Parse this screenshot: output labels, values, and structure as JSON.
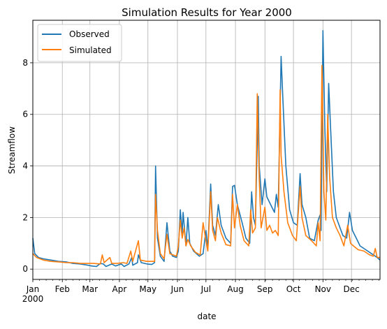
{
  "chart_data": {
    "type": "line",
    "title": "Simulation Results for Year 2000",
    "xlabel": "date",
    "ylabel": "Streamflow",
    "x_range": [
      "2000-01-01",
      "2000-12-31"
    ],
    "ylim": [
      -0.4,
      9.65
    ],
    "grid": true,
    "legend_position": "top-left",
    "month_ticks": [
      "Jan",
      "Feb",
      "Mar",
      "Apr",
      "May",
      "Jun",
      "Jul",
      "Aug",
      "Sep",
      "Oct",
      "Nov",
      "Dec"
    ],
    "year_label": "2000",
    "y_ticks": [
      0,
      2,
      4,
      6,
      8
    ],
    "series": [
      {
        "name": "Observed",
        "color": "#1f77b4",
        "points": [
          [
            "2000-01-01",
            1.2
          ],
          [
            "2000-01-03",
            0.6
          ],
          [
            "2000-01-07",
            0.45
          ],
          [
            "2000-01-12",
            0.4
          ],
          [
            "2000-01-20",
            0.35
          ],
          [
            "2000-01-28",
            0.3
          ],
          [
            "2000-02-05",
            0.28
          ],
          [
            "2000-02-12",
            0.22
          ],
          [
            "2000-02-20",
            0.2
          ],
          [
            "2000-02-28",
            0.15
          ],
          [
            "2000-03-03",
            0.12
          ],
          [
            "2000-03-08",
            0.1
          ],
          [
            "2000-03-12",
            0.22
          ],
          [
            "2000-03-15",
            0.2
          ],
          [
            "2000-03-18",
            0.1
          ],
          [
            "2000-03-24",
            0.2
          ],
          [
            "2000-03-28",
            0.12
          ],
          [
            "2000-04-03",
            0.2
          ],
          [
            "2000-04-06",
            0.1
          ],
          [
            "2000-04-11",
            0.2
          ],
          [
            "2000-04-14",
            0.45
          ],
          [
            "2000-04-15",
            0.15
          ],
          [
            "2000-04-20",
            0.25
          ],
          [
            "2000-04-21",
            0.55
          ],
          [
            "2000-04-24",
            0.25
          ],
          [
            "2000-04-30",
            0.2
          ],
          [
            "2000-05-05",
            0.18
          ],
          [
            "2000-05-08",
            0.25
          ],
          [
            "2000-05-09",
            4.0
          ],
          [
            "2000-05-11",
            1.2
          ],
          [
            "2000-05-14",
            0.5
          ],
          [
            "2000-05-18",
            0.3
          ],
          [
            "2000-05-21",
            1.8
          ],
          [
            "2000-05-24",
            0.7
          ],
          [
            "2000-05-27",
            0.5
          ],
          [
            "2000-05-31",
            0.45
          ],
          [
            "2000-06-02",
            0.7
          ],
          [
            "2000-06-04",
            2.3
          ],
          [
            "2000-06-06",
            1.4
          ],
          [
            "2000-06-07",
            2.2
          ],
          [
            "2000-06-10",
            0.9
          ],
          [
            "2000-06-12",
            2.0
          ],
          [
            "2000-06-14",
            1.0
          ],
          [
            "2000-06-18",
            0.7
          ],
          [
            "2000-06-24",
            0.5
          ],
          [
            "2000-06-28",
            0.6
          ],
          [
            "2000-07-01",
            1.5
          ],
          [
            "2000-07-03",
            0.8
          ],
          [
            "2000-07-06",
            3.3
          ],
          [
            "2000-07-08",
            1.7
          ],
          [
            "2000-07-11",
            1.3
          ],
          [
            "2000-07-14",
            2.5
          ],
          [
            "2000-07-17",
            1.7
          ],
          [
            "2000-07-22",
            1.2
          ],
          [
            "2000-07-27",
            1.0
          ],
          [
            "2000-07-29",
            3.2
          ],
          [
            "2000-07-31",
            3.25
          ],
          [
            "2000-08-03",
            2.5
          ],
          [
            "2000-08-08",
            1.8
          ],
          [
            "2000-08-12",
            1.2
          ],
          [
            "2000-08-16",
            1.0
          ],
          [
            "2000-08-18",
            3.0
          ],
          [
            "2000-08-20",
            2.0
          ],
          [
            "2000-08-22",
            1.7
          ],
          [
            "2000-08-25",
            6.7
          ],
          [
            "2000-08-26",
            4.0
          ],
          [
            "2000-08-29",
            2.5
          ],
          [
            "2000-09-01",
            3.5
          ],
          [
            "2000-09-03",
            2.8
          ],
          [
            "2000-09-07",
            2.5
          ],
          [
            "2000-09-11",
            2.2
          ],
          [
            "2000-09-13",
            2.9
          ],
          [
            "2000-09-15",
            2.4
          ],
          [
            "2000-09-18",
            8.25
          ],
          [
            "2000-09-20",
            6.5
          ],
          [
            "2000-09-23",
            4.0
          ],
          [
            "2000-09-27",
            2.3
          ],
          [
            "2000-10-01",
            1.8
          ],
          [
            "2000-10-05",
            1.7
          ],
          [
            "2000-10-08",
            3.7
          ],
          [
            "2000-10-10",
            2.5
          ],
          [
            "2000-10-14",
            2.0
          ],
          [
            "2000-10-18",
            1.2
          ],
          [
            "2000-10-23",
            1.1
          ],
          [
            "2000-10-27",
            1.9
          ],
          [
            "2000-10-29",
            2.1
          ],
          [
            "2000-10-30",
            1.5
          ],
          [
            "2000-11-01",
            9.25
          ],
          [
            "2000-11-03",
            5.5
          ],
          [
            "2000-11-05",
            3.0
          ],
          [
            "2000-11-07",
            7.2
          ],
          [
            "2000-11-09",
            5.5
          ],
          [
            "2000-11-12",
            3.0
          ],
          [
            "2000-11-15",
            2.0
          ],
          [
            "2000-11-19",
            1.6
          ],
          [
            "2000-11-22",
            1.3
          ],
          [
            "2000-11-26",
            1.2
          ],
          [
            "2000-11-29",
            2.2
          ],
          [
            "2000-12-02",
            1.5
          ],
          [
            "2000-12-06",
            1.2
          ],
          [
            "2000-12-10",
            0.9
          ],
          [
            "2000-12-16",
            0.75
          ],
          [
            "2000-12-20",
            0.65
          ],
          [
            "2000-12-24",
            0.55
          ],
          [
            "2000-12-28",
            0.45
          ],
          [
            "2000-12-31",
            0.35
          ]
        ]
      },
      {
        "name": "Simulated",
        "color": "#ff7f0e",
        "points": [
          [
            "2000-01-01",
            0.6
          ],
          [
            "2000-01-05",
            0.45
          ],
          [
            "2000-01-12",
            0.35
          ],
          [
            "2000-01-20",
            0.3
          ],
          [
            "2000-01-28",
            0.28
          ],
          [
            "2000-02-05",
            0.25
          ],
          [
            "2000-02-12",
            0.25
          ],
          [
            "2000-02-20",
            0.22
          ],
          [
            "2000-02-28",
            0.22
          ],
          [
            "2000-03-05",
            0.22
          ],
          [
            "2000-03-12",
            0.2
          ],
          [
            "2000-03-14",
            0.55
          ],
          [
            "2000-03-16",
            0.25
          ],
          [
            "2000-03-22",
            0.45
          ],
          [
            "2000-03-24",
            0.22
          ],
          [
            "2000-03-30",
            0.22
          ],
          [
            "2000-04-05",
            0.25
          ],
          [
            "2000-04-09",
            0.22
          ],
          [
            "2000-04-13",
            0.7
          ],
          [
            "2000-04-15",
            0.3
          ],
          [
            "2000-04-21",
            1.1
          ],
          [
            "2000-04-23",
            0.35
          ],
          [
            "2000-04-30",
            0.3
          ],
          [
            "2000-05-08",
            0.3
          ],
          [
            "2000-05-09",
            2.9
          ],
          [
            "2000-05-11",
            1.5
          ],
          [
            "2000-05-14",
            0.6
          ],
          [
            "2000-05-18",
            0.4
          ],
          [
            "2000-05-21",
            1.35
          ],
          [
            "2000-05-24",
            0.6
          ],
          [
            "2000-05-31",
            0.5
          ],
          [
            "2000-06-02",
            0.9
          ],
          [
            "2000-06-04",
            1.9
          ],
          [
            "2000-06-06",
            1.2
          ],
          [
            "2000-06-08",
            1.6
          ],
          [
            "2000-06-10",
            0.9
          ],
          [
            "2000-06-12",
            1.15
          ],
          [
            "2000-06-15",
            0.9
          ],
          [
            "2000-06-20",
            0.65
          ],
          [
            "2000-06-25",
            0.55
          ],
          [
            "2000-06-28",
            1.8
          ],
          [
            "2000-07-01",
            1.1
          ],
          [
            "2000-07-03",
            0.7
          ],
          [
            "2000-07-06",
            3.0
          ],
          [
            "2000-07-08",
            1.5
          ],
          [
            "2000-07-11",
            1.1
          ],
          [
            "2000-07-13",
            2.0
          ],
          [
            "2000-07-17",
            1.4
          ],
          [
            "2000-07-22",
            0.95
          ],
          [
            "2000-07-27",
            0.9
          ],
          [
            "2000-07-29",
            2.9
          ],
          [
            "2000-07-31",
            1.6
          ],
          [
            "2000-08-03",
            2.5
          ],
          [
            "2000-08-06",
            1.7
          ],
          [
            "2000-08-10",
            1.1
          ],
          [
            "2000-08-15",
            0.9
          ],
          [
            "2000-08-17",
            2.3
          ],
          [
            "2000-08-19",
            1.4
          ],
          [
            "2000-08-22",
            1.6
          ],
          [
            "2000-08-24",
            6.8
          ],
          [
            "2000-08-26",
            3.5
          ],
          [
            "2000-08-28",
            1.6
          ],
          [
            "2000-09-01",
            2.4
          ],
          [
            "2000-09-03",
            1.5
          ],
          [
            "2000-09-06",
            1.7
          ],
          [
            "2000-09-09",
            1.4
          ],
          [
            "2000-09-12",
            1.5
          ],
          [
            "2000-09-15",
            1.3
          ],
          [
            "2000-09-17",
            6.95
          ],
          [
            "2000-09-18",
            4.4
          ],
          [
            "2000-09-21",
            3.0
          ],
          [
            "2000-09-25",
            1.8
          ],
          [
            "2000-09-30",
            1.3
          ],
          [
            "2000-10-04",
            1.1
          ],
          [
            "2000-10-08",
            3.2
          ],
          [
            "2000-10-10",
            2.0
          ],
          [
            "2000-10-14",
            1.3
          ],
          [
            "2000-10-20",
            1.1
          ],
          [
            "2000-10-25",
            0.9
          ],
          [
            "2000-10-27",
            1.8
          ],
          [
            "2000-10-29",
            1.1
          ],
          [
            "2000-10-31",
            7.9
          ],
          [
            "2000-11-02",
            3.0
          ],
          [
            "2000-11-04",
            1.9
          ],
          [
            "2000-11-06",
            6.0
          ],
          [
            "2000-11-08",
            3.6
          ],
          [
            "2000-11-11",
            2.0
          ],
          [
            "2000-11-15",
            1.6
          ],
          [
            "2000-11-19",
            1.3
          ],
          [
            "2000-11-23",
            0.9
          ],
          [
            "2000-11-27",
            1.7
          ],
          [
            "2000-11-30",
            1.0
          ],
          [
            "2000-12-03",
            0.9
          ],
          [
            "2000-12-08",
            0.75
          ],
          [
            "2000-12-14",
            0.7
          ],
          [
            "2000-12-20",
            0.55
          ],
          [
            "2000-12-24",
            0.5
          ],
          [
            "2000-12-26",
            0.8
          ],
          [
            "2000-12-28",
            0.45
          ],
          [
            "2000-12-31",
            0.45
          ]
        ]
      }
    ]
  }
}
